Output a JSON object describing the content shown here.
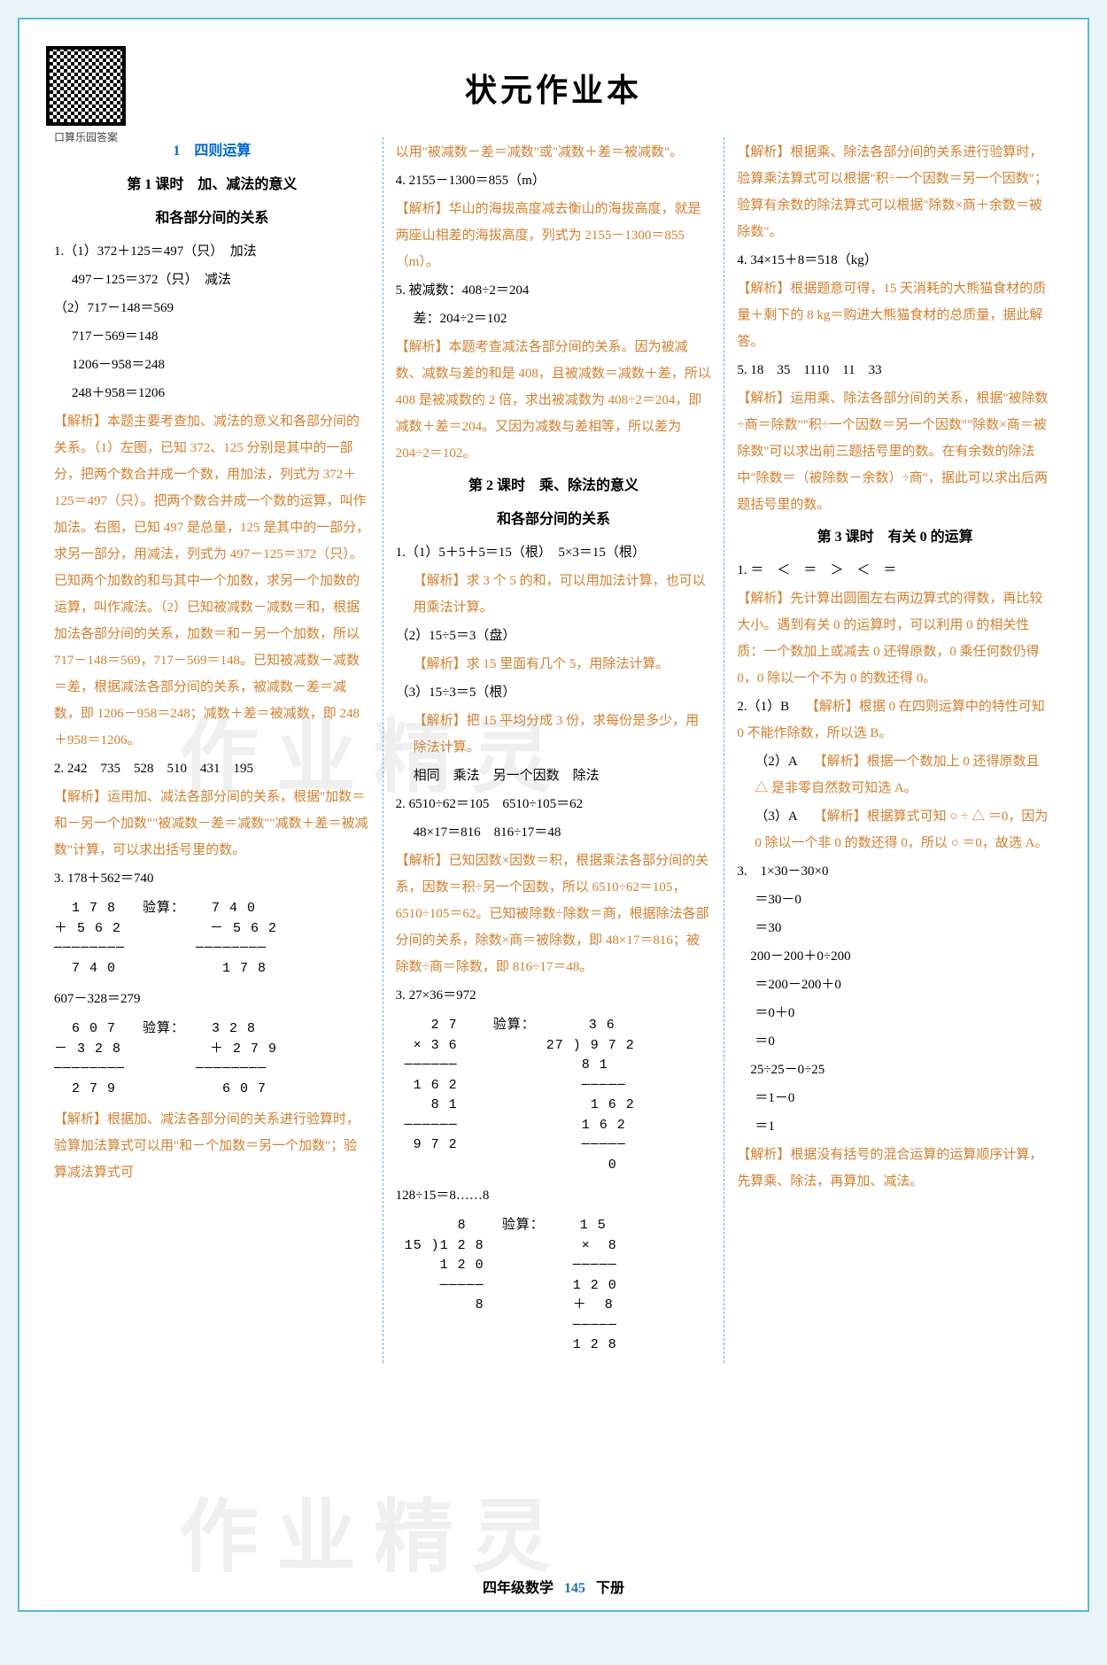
{
  "qr_label": "口算乐园答案",
  "main_title": "状元作业本",
  "watermark": "作业精灵",
  "footer": {
    "left": "四年级数学",
    "page": "145",
    "right": "下册"
  },
  "col1": {
    "chapter": "1　四则运算",
    "lesson_a": "第 1 课时　加、减法的意义",
    "lesson_b": "和各部分间的关系",
    "q1a": "1.（1）372＋125＝497（只）　加法",
    "q1b": "497－125＝372（只）　减法",
    "q1c": "（2）717－148＝569",
    "q1d": "717－569＝148",
    "q1e": "1206－958＝248",
    "q1f": "248＋958＝1206",
    "a1": "【解析】本题主要考查加、减法的意义和各部分间的关系。（1）左图，已知 372、125 分别是其中的一部分，把两个数合并成一个数，用加法，列式为 372＋125＝497（只）。把两个数合并成一个数的运算，叫作加法。右图，已知 497 是总量，125 是其中的一部分，求另一部分，用减法，列式为 497－125＝372（只）。已知两个加数的和与其中一个加数，求另一个加数的运算，叫作减法。（2）已知被减数－减数＝和，根据加法各部分间的关系，加数＝和－另一个加数，所以 717－148＝569，717－569＝148。已知被减数－减数＝差，根据减法各部分间的关系，被减数－差＝减数，即 1206－958＝248；减数＋差＝被减数，即 248＋958＝1206。",
    "q2": "2. 242　735　528　510　431　195",
    "a2": "【解析】运用加、减法各部分间的关系，根据\"加数＝和－另一个加数\"\"被减数－差＝减数\"\"减数＋差＝被减数\"计算，可以求出括号里的数。",
    "q3a": "3. 178＋562＝740",
    "calc1": "  1 7 8   验算：   7 4 0\n＋ 5 6 2          － 5 6 2\n────────        ────────\n  7 4 0            1 7 8",
    "q3b": "607－328＝279",
    "calc2": "  6 0 7   验算：   3 2 8\n－ 3 2 8          ＋ 2 7 9\n────────        ────────\n  2 7 9            6 0 7",
    "a3": "【解析】根据加、减法各部分间的关系进行验算时，验算加法算式可以用\"和－个加数＝另一个加数\"；验算减法算式可"
  },
  "col2": {
    "a3cont": "以用\"被减数－差＝减数\"或\"减数＋差＝被减数\"。",
    "q4": "4. 2155－1300＝855（m）",
    "a4": "【解析】华山的海拔高度减去衡山的海拔高度，就是两座山相差的海拔高度，列式为 2155－1300＝855（m）。",
    "q5a": "5. 被减数：408÷2＝204",
    "q5b": "差：204÷2＝102",
    "a5": "【解析】本题考查减法各部分间的关系。因为被减数、减数与差的和是 408，且被减数＝减数＋差，所以 408 是被减数的 2 倍，求出被减数为 408÷2＝204，即减数＋差＝204。又因为减数与差相等，所以差为 204÷2＝102。",
    "lesson2a": "第 2 课时　乘、除法的意义",
    "lesson2b": "和各部分间的关系",
    "q21a": "1.（1）5＋5＋5＝15（根）　5×3＝15（根）",
    "a21a": "【解析】求 3 个 5 的和，可以用加法计算，也可以用乘法计算。",
    "q21b": "（2）15÷5＝3（盘）",
    "a21b": "【解析】求 15 里面有几个 5，用除法计算。",
    "q21c": "（3）15÷3＝5（根）",
    "a21c": "【解析】把 15 平均分成 3 份，求每份是多少，用除法计算。",
    "q21d": "相同　乘法　另一个因数　除法",
    "q22a": "2. 6510÷62＝105　6510÷105＝62",
    "q22b": "48×17＝816　816÷17＝48",
    "a22": "【解析】已知因数×因数＝积，根据乘法各部分间的关系，因数＝积÷另一个因数，所以 6510÷62＝105，6510÷105＝62。已知被除数÷除数＝商，根据除法各部分间的关系，除数×商＝被除数，即 48×17＝816；被除数÷商＝除数，即 816÷17＝48。",
    "q23": "3. 27×36＝972",
    "calc3": "    2 7    验算：      3 6\n  × 3 6          27 ) 9 7 2\n ──────              8 1\n  1 6 2              ─────\n    8 1               1 6 2\n ──────              1 6 2\n  9 7 2              ─────\n                        0",
    "q23b": "128÷15＝8……8",
    "calc4": "       8    验算：    1 5\n 15 )1 2 8           ×  8\n     1 2 0          ─────\n     ─────          1 2 0\n         8          ＋  8\n                    ─────\n                    1 2 8"
  },
  "col3": {
    "a23": "【解析】根据乘、除法各部分间的关系进行验算时，验算乘法算式可以根据\"积÷一个因数＝另一个因数\"；验算有余数的除法算式可以根据\"除数×商＋余数＝被除数\"。",
    "q4": "4. 34×15＋8＝518（kg）",
    "a4": "【解析】根据题意可得，15 天消耗的大熊猫食材的质量＋剩下的 8 kg＝购进大熊猫食材的总质量，据此解答。",
    "q5": "5. 18　35　1110　11　33",
    "a5": "【解析】运用乘、除法各部分间的关系，根据\"被除数÷商＝除数\"\"积÷一个因数＝另一个因数\"\"除数×商＝被除数\"可以求出前三题括号里的数。在有余数的除法中\"除数＝（被除数－余数）÷商\"，据此可以求出后两题括号里的数。",
    "lesson3": "第 3 课时　有关 0 的运算",
    "q31": "1. ＝　＜　＝　＞　＜　＝",
    "a31": "【解析】先计算出圆圈左右两边算式的得数，再比较大小。遇到有关 0 的运算时，可以利用 0 的相关性质：一个数加上或减去 0 还得原数，0 乘任何数仍得 0，0 除以一个不为 0 的数还得 0。",
    "q32a": "2.（1）B　",
    "a32a": "【解析】根据 0 在四则运算中的特性可知 0 不能作除数，所以选 B。",
    "q32b": "（2）A　",
    "a32b": "【解析】根据一个数加上 0 还得原数且 △ 是非零自然数可知选 A。",
    "q32c": "（3）A　",
    "a32c": "【解析】根据算式可知 ○ ÷ △ ＝0，因为 0 除以一个非 0 的数还得 0，所以 ○ ＝0，故选 A。",
    "q33": "3.　1×30－30×0",
    "c33a": "＝30－0",
    "c33b": "＝30",
    "c34": "　200－200＋0÷200",
    "c34a": "＝200－200＋0",
    "c34b": "＝0＋0",
    "c34c": "＝0",
    "c35": "　25÷25－0÷25",
    "c35a": "＝1－0",
    "c35b": "＝1",
    "a33": "【解析】根据没有括号的混合运算的运算顺序计算，先算乘、除法，再算加、减法。"
  }
}
